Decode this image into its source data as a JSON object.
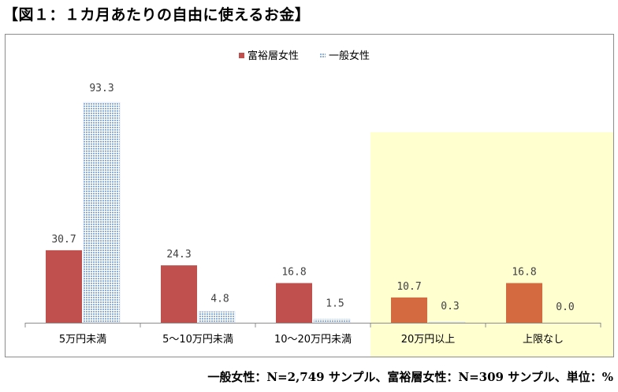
{
  "title": "【図１：１カ月あたりの自由に使えるお金】",
  "footnote": "一般女性：N=2,749 サンプル、富裕層女性：N=309 サンプル、単位：%",
  "colors": {
    "wealthy": "#c0504d",
    "wealthy_highlight": "#d46a3f",
    "general": "#a9c4e4",
    "highlight_bg": "#ffffd0",
    "axis": "#8c8c8c"
  },
  "chart_data": {
    "type": "bar",
    "title": "",
    "xlabel": "",
    "ylabel": "",
    "ylim": [
      0,
      100
    ],
    "grid": false,
    "legend": "top-center",
    "categories": [
      "5万円未満",
      "5～10万円未満",
      "10～20万円未満",
      "20万円以上",
      "上限なし"
    ],
    "series": [
      {
        "name": "富裕層女性",
        "values": [
          30.7,
          24.3,
          16.8,
          10.7,
          16.8
        ],
        "labels": [
          "30.7",
          "24.3",
          "16.8",
          "10.7",
          "16.8"
        ]
      },
      {
        "name": "一般女性",
        "values": [
          93.3,
          4.8,
          1.5,
          0.3,
          0.0
        ],
        "labels": [
          "93.3",
          "4.8",
          "1.5",
          "0.3",
          "0.0"
        ]
      }
    ],
    "highlighted_categories": [
      "20万円以上",
      "上限なし"
    ]
  }
}
